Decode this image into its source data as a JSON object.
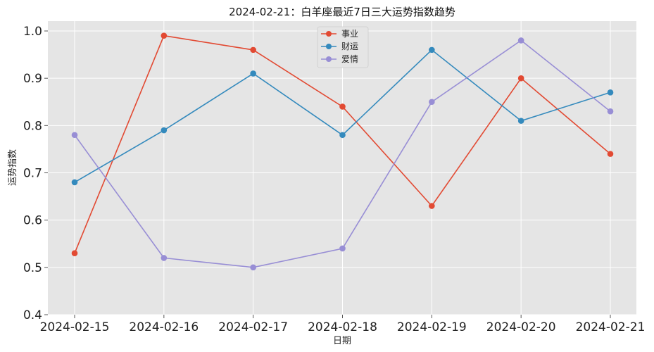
{
  "chart_data": {
    "type": "line",
    "title": "2024-02-21：白羊座最近7日三大运势指数趋势",
    "xlabel": "日期",
    "ylabel": "运势指数",
    "categories": [
      "2024-02-15",
      "2024-02-16",
      "2024-02-17",
      "2024-02-18",
      "2024-02-19",
      "2024-02-20",
      "2024-02-21"
    ],
    "ylim": [
      0.4,
      1.0
    ],
    "yticks": [
      "0.4",
      "0.5",
      "0.6",
      "0.7",
      "0.8",
      "0.9",
      "1.0"
    ],
    "grid": true,
    "legend_position": "top-center",
    "series": [
      {
        "name": "事业",
        "color": "#E24A33",
        "values": [
          0.53,
          0.99,
          0.96,
          0.84,
          0.63,
          0.9,
          0.74
        ]
      },
      {
        "name": "财运",
        "color": "#348ABD",
        "values": [
          0.68,
          0.79,
          0.91,
          0.78,
          0.96,
          0.81,
          0.87
        ]
      },
      {
        "name": "爱情",
        "color": "#988ED5",
        "values": [
          0.78,
          0.52,
          0.5,
          0.54,
          0.85,
          0.98,
          0.83
        ]
      }
    ],
    "background_color": "#E5E5E5",
    "grid_color": "#FFFFFF"
  }
}
